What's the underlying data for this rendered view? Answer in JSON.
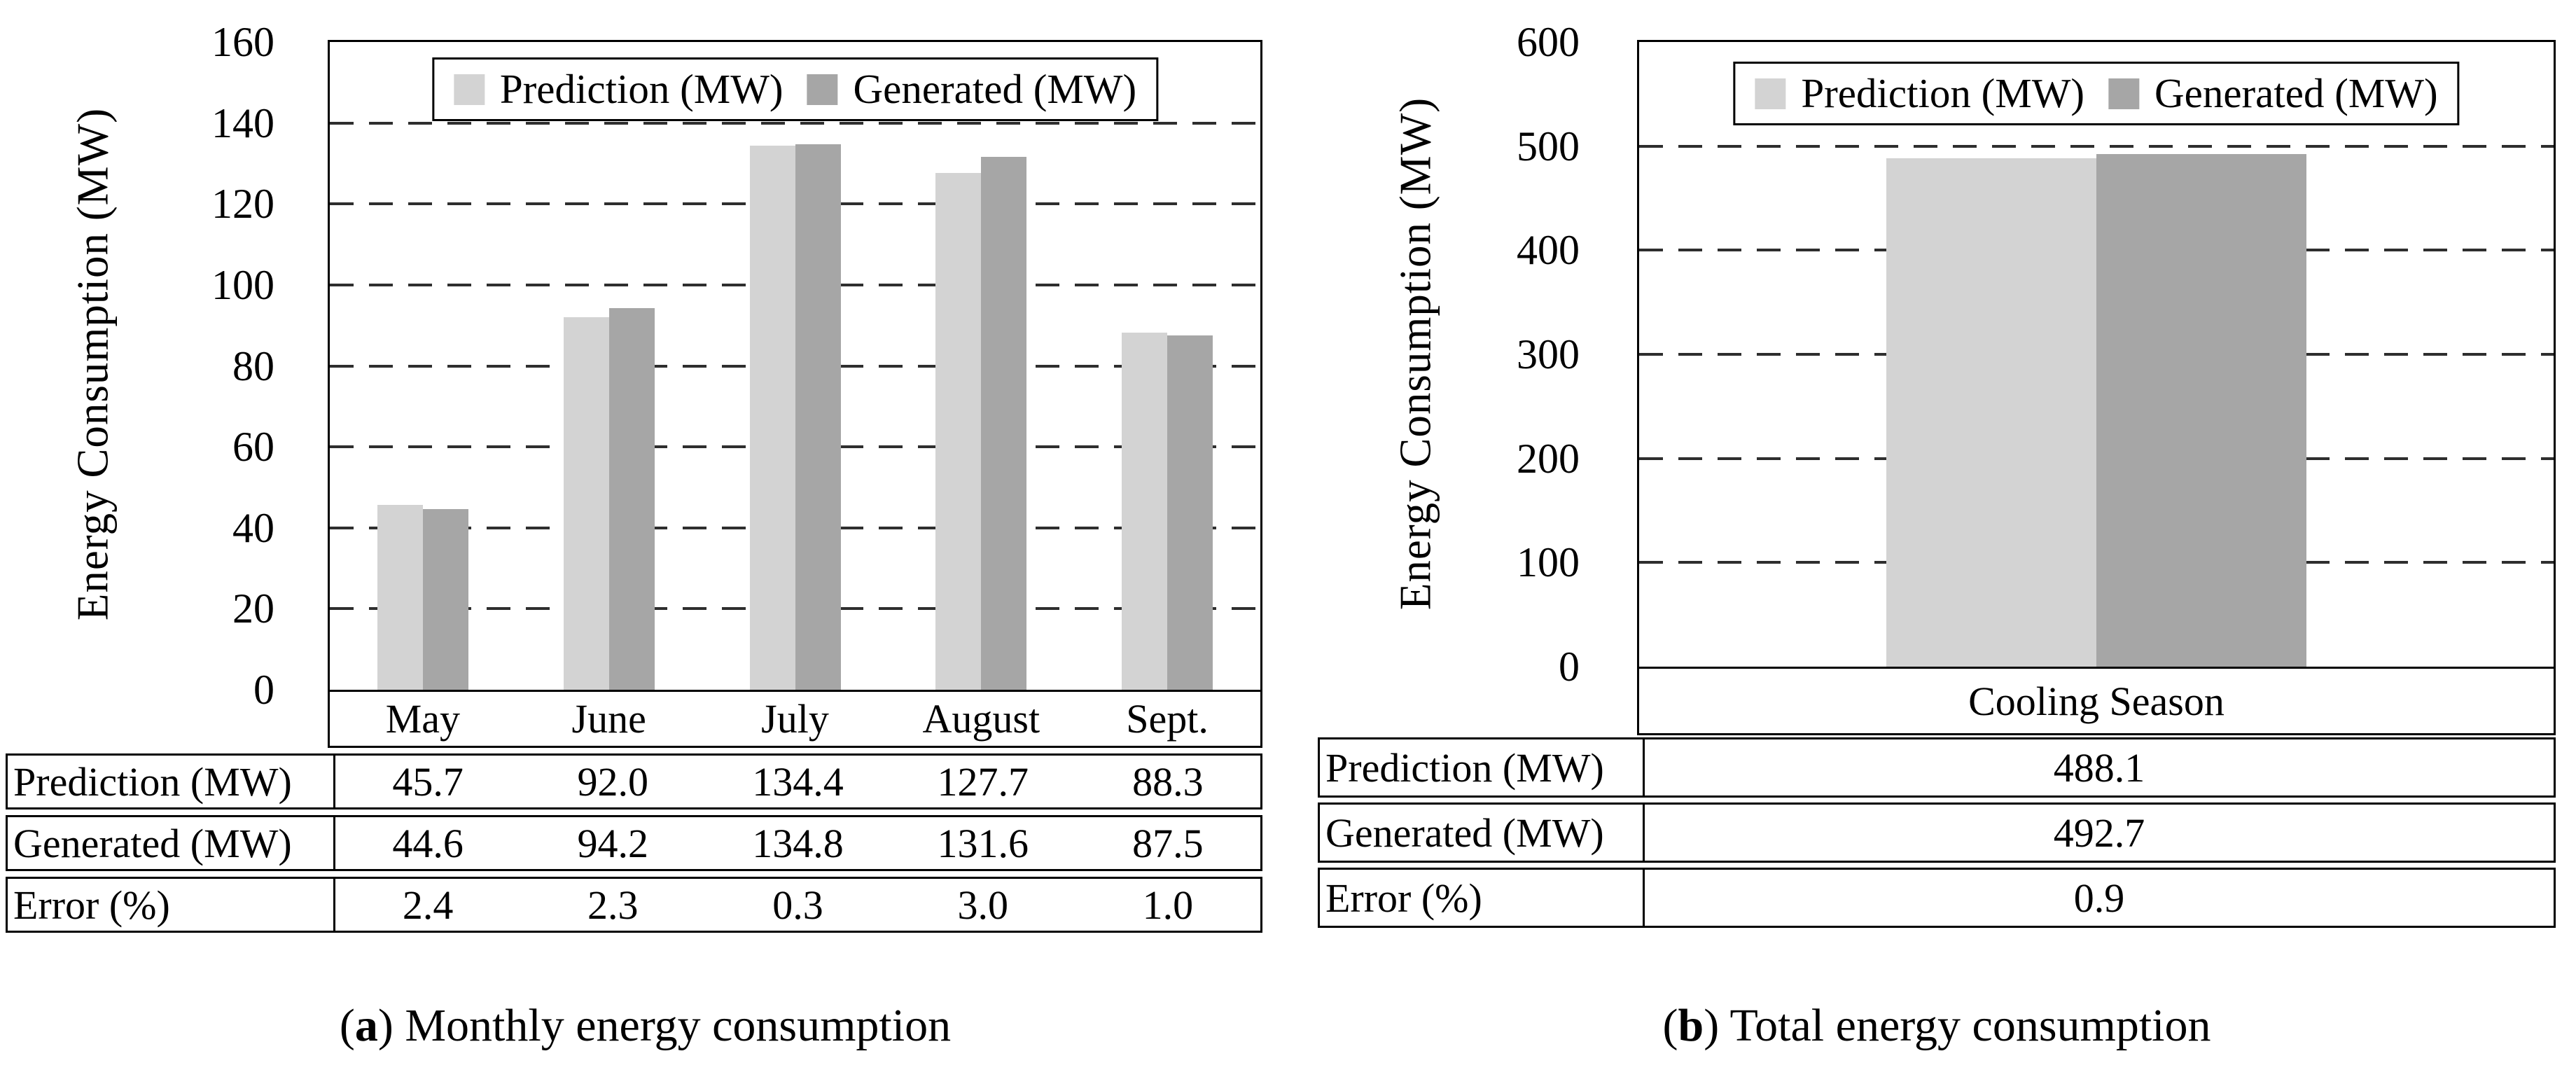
{
  "chart_data": [
    {
      "type": "bar",
      "title": "",
      "categories": [
        "May",
        "June",
        "July",
        "August",
        "Sept."
      ],
      "series": [
        {
          "name": "Prediction (MW)",
          "values": [
            45.7,
            92.0,
            134.4,
            127.7,
            88.3
          ]
        },
        {
          "name": "Generated (MW)",
          "values": [
            44.6,
            94.2,
            134.8,
            131.6,
            87.5
          ]
        }
      ],
      "xlabel": "",
      "ylabel": "Energy Consumption (MW)",
      "ylim": [
        0,
        160
      ],
      "ytick_step": 20,
      "yticks": [
        160,
        140,
        120,
        100,
        80,
        60,
        40,
        20,
        0
      ],
      "grid": "horizontal-dashed",
      "legend_position": "top-center",
      "colors": {
        "prediction": "#d3d3d3",
        "generated": "#a6a6a6"
      }
    },
    {
      "type": "bar",
      "title": "",
      "categories": [
        "Cooling Season"
      ],
      "series": [
        {
          "name": "Prediction (MW)",
          "values": [
            488.1
          ]
        },
        {
          "name": "Generated (MW)",
          "values": [
            492.7
          ]
        }
      ],
      "xlabel": "",
      "ylabel": "Energy Consumption (MW)",
      "ylim": [
        0,
        600
      ],
      "ytick_step": 100,
      "yticks": [
        600,
        500,
        400,
        300,
        200,
        100,
        0
      ],
      "grid": "horizontal-dashed",
      "legend_position": "top-center",
      "colors": {
        "prediction": "#d3d3d3",
        "generated": "#a6a6a6"
      }
    }
  ],
  "figure_a": {
    "caption": {
      "open": "(",
      "letter": "a",
      "rest": ") Monthly energy consumption"
    },
    "table": {
      "row_headers": [
        "Prediction (MW)",
        "Generated (MW)",
        "Error (%)"
      ],
      "rows": [
        [
          "45.7",
          "92.0",
          "134.4",
          "127.7",
          "88.3"
        ],
        [
          "44.6",
          "94.2",
          "134.8",
          "131.6",
          "87.5"
        ],
        [
          "2.4",
          "2.3",
          "0.3",
          "3.0",
          "1.0"
        ]
      ]
    }
  },
  "figure_b": {
    "caption": {
      "open": "(",
      "letter": "b",
      "rest": ") Total energy consumption"
    },
    "table": {
      "row_headers": [
        "Prediction (MW)",
        "Generated (MW)",
        "Error (%)"
      ],
      "rows": [
        [
          "488.1"
        ],
        [
          "492.7"
        ],
        [
          "0.9"
        ]
      ]
    }
  }
}
